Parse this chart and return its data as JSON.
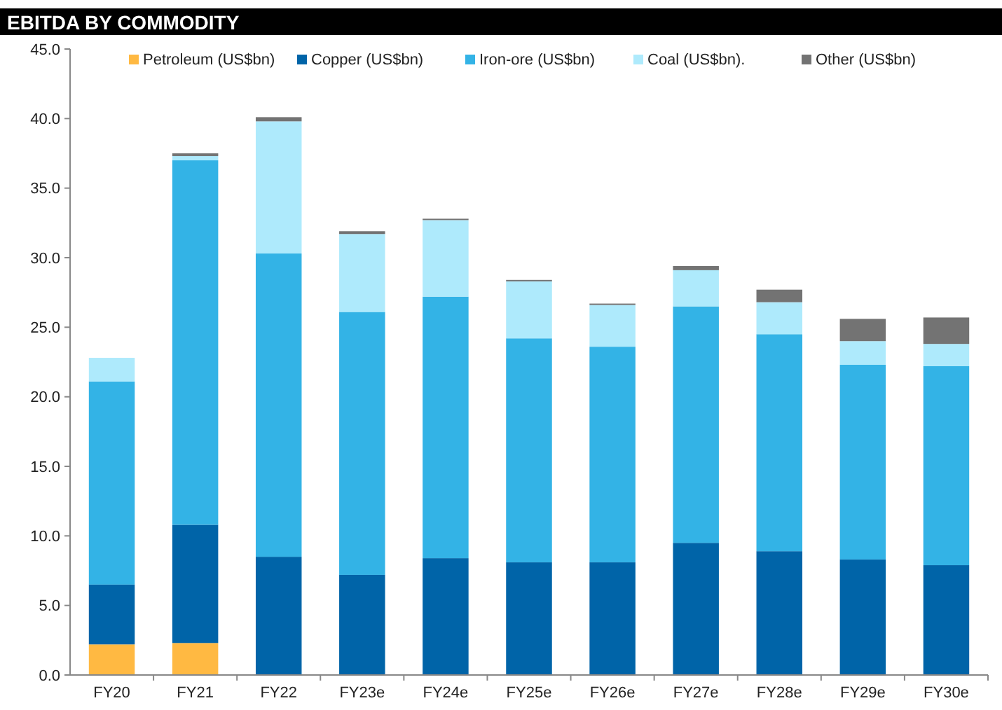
{
  "chart_data": {
    "type": "bar",
    "title": "EBITDA BY COMMODITY",
    "stacked": true,
    "legend": "top",
    "grid": false,
    "categories": [
      "FY20",
      "FY21",
      "FY22",
      "FY23e",
      "FY24e",
      "FY25e",
      "FY26e",
      "FY27e",
      "FY28e",
      "FY29e",
      "FY30e"
    ],
    "series": [
      {
        "name": "Petroleum (US$bn)",
        "color": "#ffb942",
        "values": [
          2.2,
          2.3,
          0,
          0,
          0,
          0,
          0,
          0,
          0,
          0,
          0
        ]
      },
      {
        "name": "Copper (US$bn)",
        "color": "#0064a8",
        "values": [
          4.3,
          8.5,
          8.5,
          7.2,
          8.4,
          8.1,
          8.1,
          9.5,
          8.9,
          8.3,
          7.9
        ]
      },
      {
        "name": "Iron-ore (US$bn)",
        "color": "#33b3e6",
        "values": [
          14.6,
          26.2,
          21.8,
          18.9,
          18.8,
          16.1,
          15.5,
          17.0,
          15.6,
          14.0,
          14.3
        ]
      },
      {
        "name": "Coal (US$bn).",
        "color": "#aeeafc",
        "values": [
          1.7,
          0.3,
          9.5,
          5.6,
          5.5,
          4.1,
          3.0,
          2.6,
          2.3,
          1.7,
          1.6
        ]
      },
      {
        "name": "Other (US$bn)",
        "color": "#737373",
        "values": [
          0,
          0.2,
          0.3,
          0.2,
          0.1,
          0.1,
          0.1,
          0.3,
          0.9,
          1.6,
          1.9
        ]
      }
    ],
    "ylim": [
      0,
      45
    ],
    "yticks": [
      {
        "value": 0,
        "label": "0.0"
      },
      {
        "value": 5,
        "label": "5.0"
      },
      {
        "value": 10,
        "label": "10.0"
      },
      {
        "value": 15,
        "label": "15.0"
      },
      {
        "value": 20,
        "label": "20.0"
      },
      {
        "value": 25,
        "label": "25.0"
      },
      {
        "value": 30,
        "label": "30.0"
      },
      {
        "value": 35,
        "label": "35.0"
      },
      {
        "value": 40,
        "label": "40.0"
      },
      {
        "value": 45,
        "label": "45.0"
      }
    ]
  }
}
